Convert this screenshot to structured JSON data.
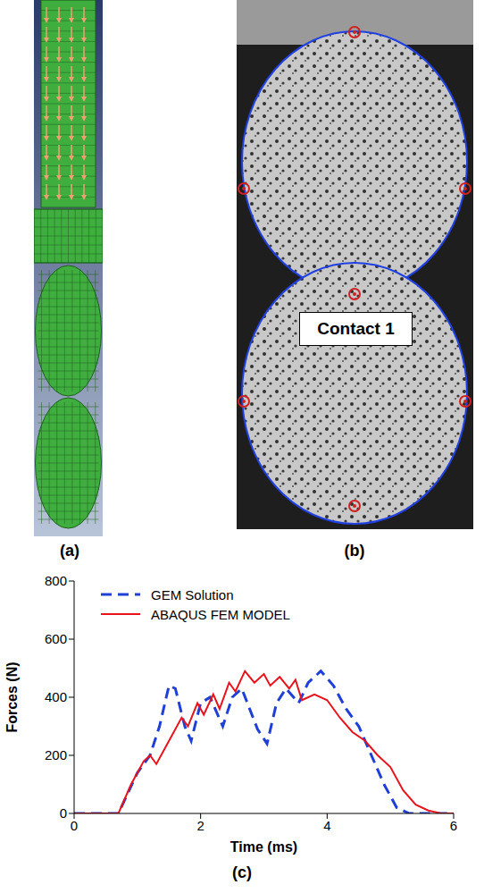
{
  "panel_labels": [
    "(a)",
    "(b)",
    "(c)"
  ],
  "photo_annotation": "Contact 1",
  "chart_data": {
    "type": "line",
    "xlabel": "Time (ms)",
    "ylabel": "Forces (N)",
    "xlim": [
      0,
      6
    ],
    "xticks": [
      0,
      2,
      4,
      6
    ],
    "ylim": [
      0,
      800
    ],
    "yticks": [
      0,
      200,
      400,
      600,
      800
    ],
    "grid": false,
    "legend": "upper left",
    "series": [
      {
        "name": "GEM Solution",
        "color": "#1f3fd6",
        "line_style": "dashed",
        "x": [
          0,
          0.7,
          1.0,
          1.2,
          1.35,
          1.5,
          1.6,
          1.75,
          1.85,
          2.0,
          2.15,
          2.35,
          2.5,
          2.65,
          2.9,
          3.05,
          3.2,
          3.35,
          3.55,
          3.7,
          3.9,
          4.1,
          4.3,
          4.5,
          4.7,
          4.9,
          5.1,
          5.3,
          6.0
        ],
        "values": [
          0,
          0,
          140,
          200,
          300,
          440,
          430,
          300,
          250,
          380,
          400,
          300,
          400,
          430,
          290,
          240,
          380,
          430,
          380,
          450,
          490,
          440,
          360,
          300,
          200,
          100,
          20,
          0,
          0
        ]
      },
      {
        "name": "ABAQUS FEM MODEL",
        "color": "#e8131b",
        "line_style": "solid",
        "x": [
          0,
          0.7,
          0.9,
          1.1,
          1.2,
          1.3,
          1.5,
          1.7,
          1.8,
          1.95,
          2.05,
          2.2,
          2.3,
          2.45,
          2.55,
          2.7,
          2.85,
          3.0,
          3.1,
          3.25,
          3.4,
          3.5,
          3.6,
          3.8,
          4.0,
          4.2,
          4.4,
          4.6,
          4.8,
          5.0,
          5.2,
          5.4,
          5.6,
          5.8,
          6.0
        ],
        "values": [
          0,
          0,
          100,
          180,
          200,
          170,
          250,
          330,
          300,
          380,
          340,
          410,
          360,
          450,
          420,
          490,
          450,
          480,
          440,
          470,
          430,
          460,
          390,
          410,
          390,
          330,
          280,
          250,
          200,
          160,
          80,
          30,
          10,
          0,
          0
        ]
      }
    ]
  }
}
